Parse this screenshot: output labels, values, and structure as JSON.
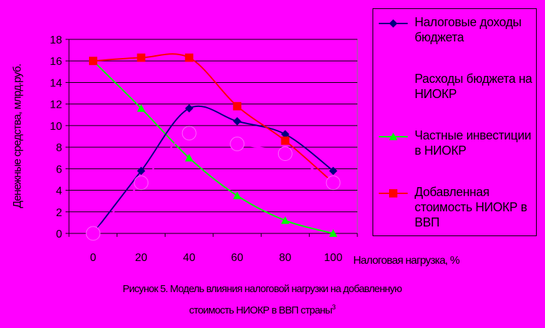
{
  "chart_data": {
    "type": "line",
    "x": [
      0,
      20,
      40,
      60,
      80,
      100
    ],
    "xlabel": "Налоговая нагрузка, %",
    "ylabel": "Денежные средства, млрд.руб.",
    "ylim": [
      0,
      18
    ],
    "yticks": [
      0,
      2,
      4,
      6,
      8,
      10,
      12,
      14,
      16,
      18
    ],
    "xticks": [
      0,
      20,
      40,
      60,
      80,
      100
    ],
    "grid": "horizontal",
    "legend_position": "right",
    "series": [
      {
        "name": "Налоговые доходы бюджета",
        "values": [
          0,
          5.8,
          11.6,
          10.4,
          9.2,
          5.8
        ],
        "color": "#000080",
        "marker": "diamond"
      },
      {
        "name": "Расходы бюджета на НИОКР",
        "values": [
          0,
          4.7,
          9.3,
          8.3,
          7.4,
          4.7
        ],
        "color": "#ff00ff",
        "marker": "circle"
      },
      {
        "name": "Частные инвестиции в НИОКР",
        "values": [
          16,
          11.6,
          7.0,
          3.5,
          1.2,
          0
        ],
        "color": "#00ff00",
        "marker": "triangle"
      },
      {
        "name": "Добавленная стоимость НИОКР в ВВП",
        "values": [
          16,
          16.3,
          16.3,
          11.8,
          8.6,
          4.7
        ],
        "color": "#ff0000",
        "marker": "square"
      }
    ]
  },
  "caption": {
    "line1": "Рисунок 5. Модель влияния налоговой нагрузки на добавленную",
    "line2": "стоимость НИОКР в ВВП страны",
    "footnote_mark": "3"
  }
}
